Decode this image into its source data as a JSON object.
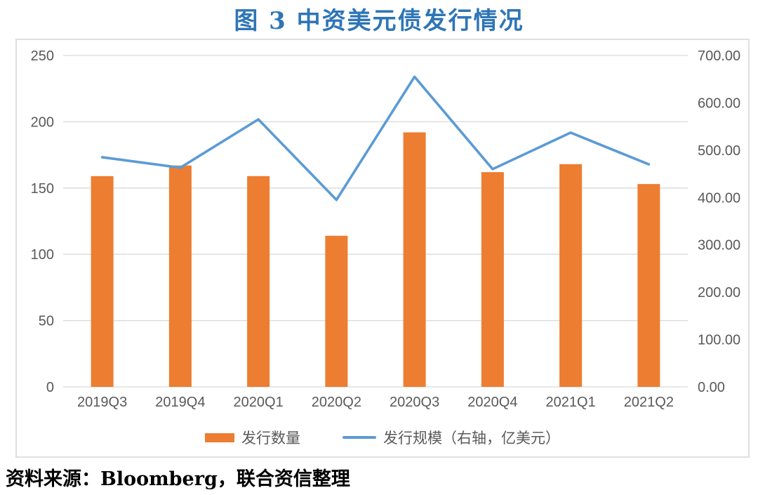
{
  "title": "图 3 中资美元债发行情况",
  "source": "资料来源：Bloomberg，联合资信整理",
  "colors": {
    "title": "#2E75B6",
    "bar": "#ED7D31",
    "line": "#5B9BD5",
    "axis_text": "#595959",
    "gridline": "#D9D9D9",
    "border": "#E0E0E0"
  },
  "chart_data": {
    "type": "combo",
    "categories": [
      "2019Q3",
      "2019Q4",
      "2020Q1",
      "2020Q2",
      "2020Q3",
      "2020Q4",
      "2021Q1",
      "2021Q2"
    ],
    "series": [
      {
        "name": "发行数量",
        "type": "bar",
        "axis": "left",
        "color": "#ED7D31",
        "values": [
          159,
          167,
          159,
          114,
          192,
          162,
          168,
          153
        ]
      },
      {
        "name": "发行规模（右轴，亿美元）",
        "type": "line",
        "axis": "right",
        "color": "#5B9BD5",
        "values": [
          485,
          463,
          565,
          395,
          655,
          460,
          537,
          470
        ]
      }
    ],
    "left_axis": {
      "min": 0,
      "max": 250,
      "ticks": [
        "0",
        "50",
        "100",
        "150",
        "200",
        "250"
      ]
    },
    "right_axis": {
      "min": 0,
      "max": 700,
      "ticks": [
        "0.00",
        "100.00",
        "200.00",
        "300.00",
        "400.00",
        "500.00",
        "600.00",
        "700.00"
      ]
    },
    "grid": true,
    "legend_position": "bottom",
    "title": "图 3 中资美元债发行情况"
  }
}
